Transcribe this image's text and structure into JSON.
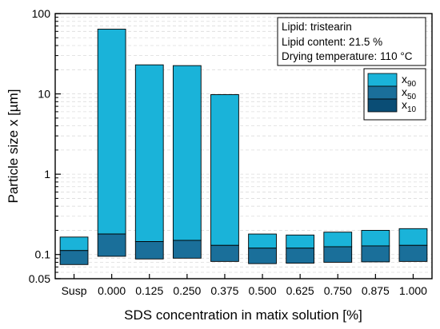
{
  "chart_data": {
    "type": "bar",
    "xlabel": "SDS concentration in matix solution [%]",
    "ylabel": "Particle size x [µm]",
    "yscale": "log",
    "ylim": [
      0.05,
      100
    ],
    "yticks": [
      "0.05",
      "0.1",
      "1",
      "10",
      "100"
    ],
    "categories": [
      "Susp",
      "0.000",
      "0.125",
      "0.250",
      "0.375",
      "0.500",
      "0.625",
      "0.750",
      "0.875",
      "1.000"
    ],
    "series": [
      {
        "name": "x90",
        "name_main": "x",
        "name_sub": "90",
        "color": "#1ab3d9",
        "values": [
          0.165,
          64,
          23,
          22.5,
          9.8,
          0.18,
          0.175,
          0.19,
          0.2,
          0.21
        ]
      },
      {
        "name": "x50",
        "name_main": "x",
        "name_sub": "50",
        "color": "#1a6f9a",
        "values": [
          0.112,
          0.18,
          0.145,
          0.15,
          0.13,
          0.12,
          0.12,
          0.125,
          0.128,
          0.13
        ]
      },
      {
        "name": "x10",
        "name_main": "x",
        "name_sub": "10",
        "color": "#0a4d75",
        "values": [
          0.075,
          0.095,
          0.088,
          0.09,
          0.082,
          0.077,
          0.078,
          0.08,
          0.081,
          0.082
        ]
      }
    ],
    "annotation": [
      "Lipid: tristearin",
      "Lipid content: 21.5 %",
      "Drying temperature: 110 °C"
    ],
    "grid": true,
    "legend_position": "right"
  }
}
